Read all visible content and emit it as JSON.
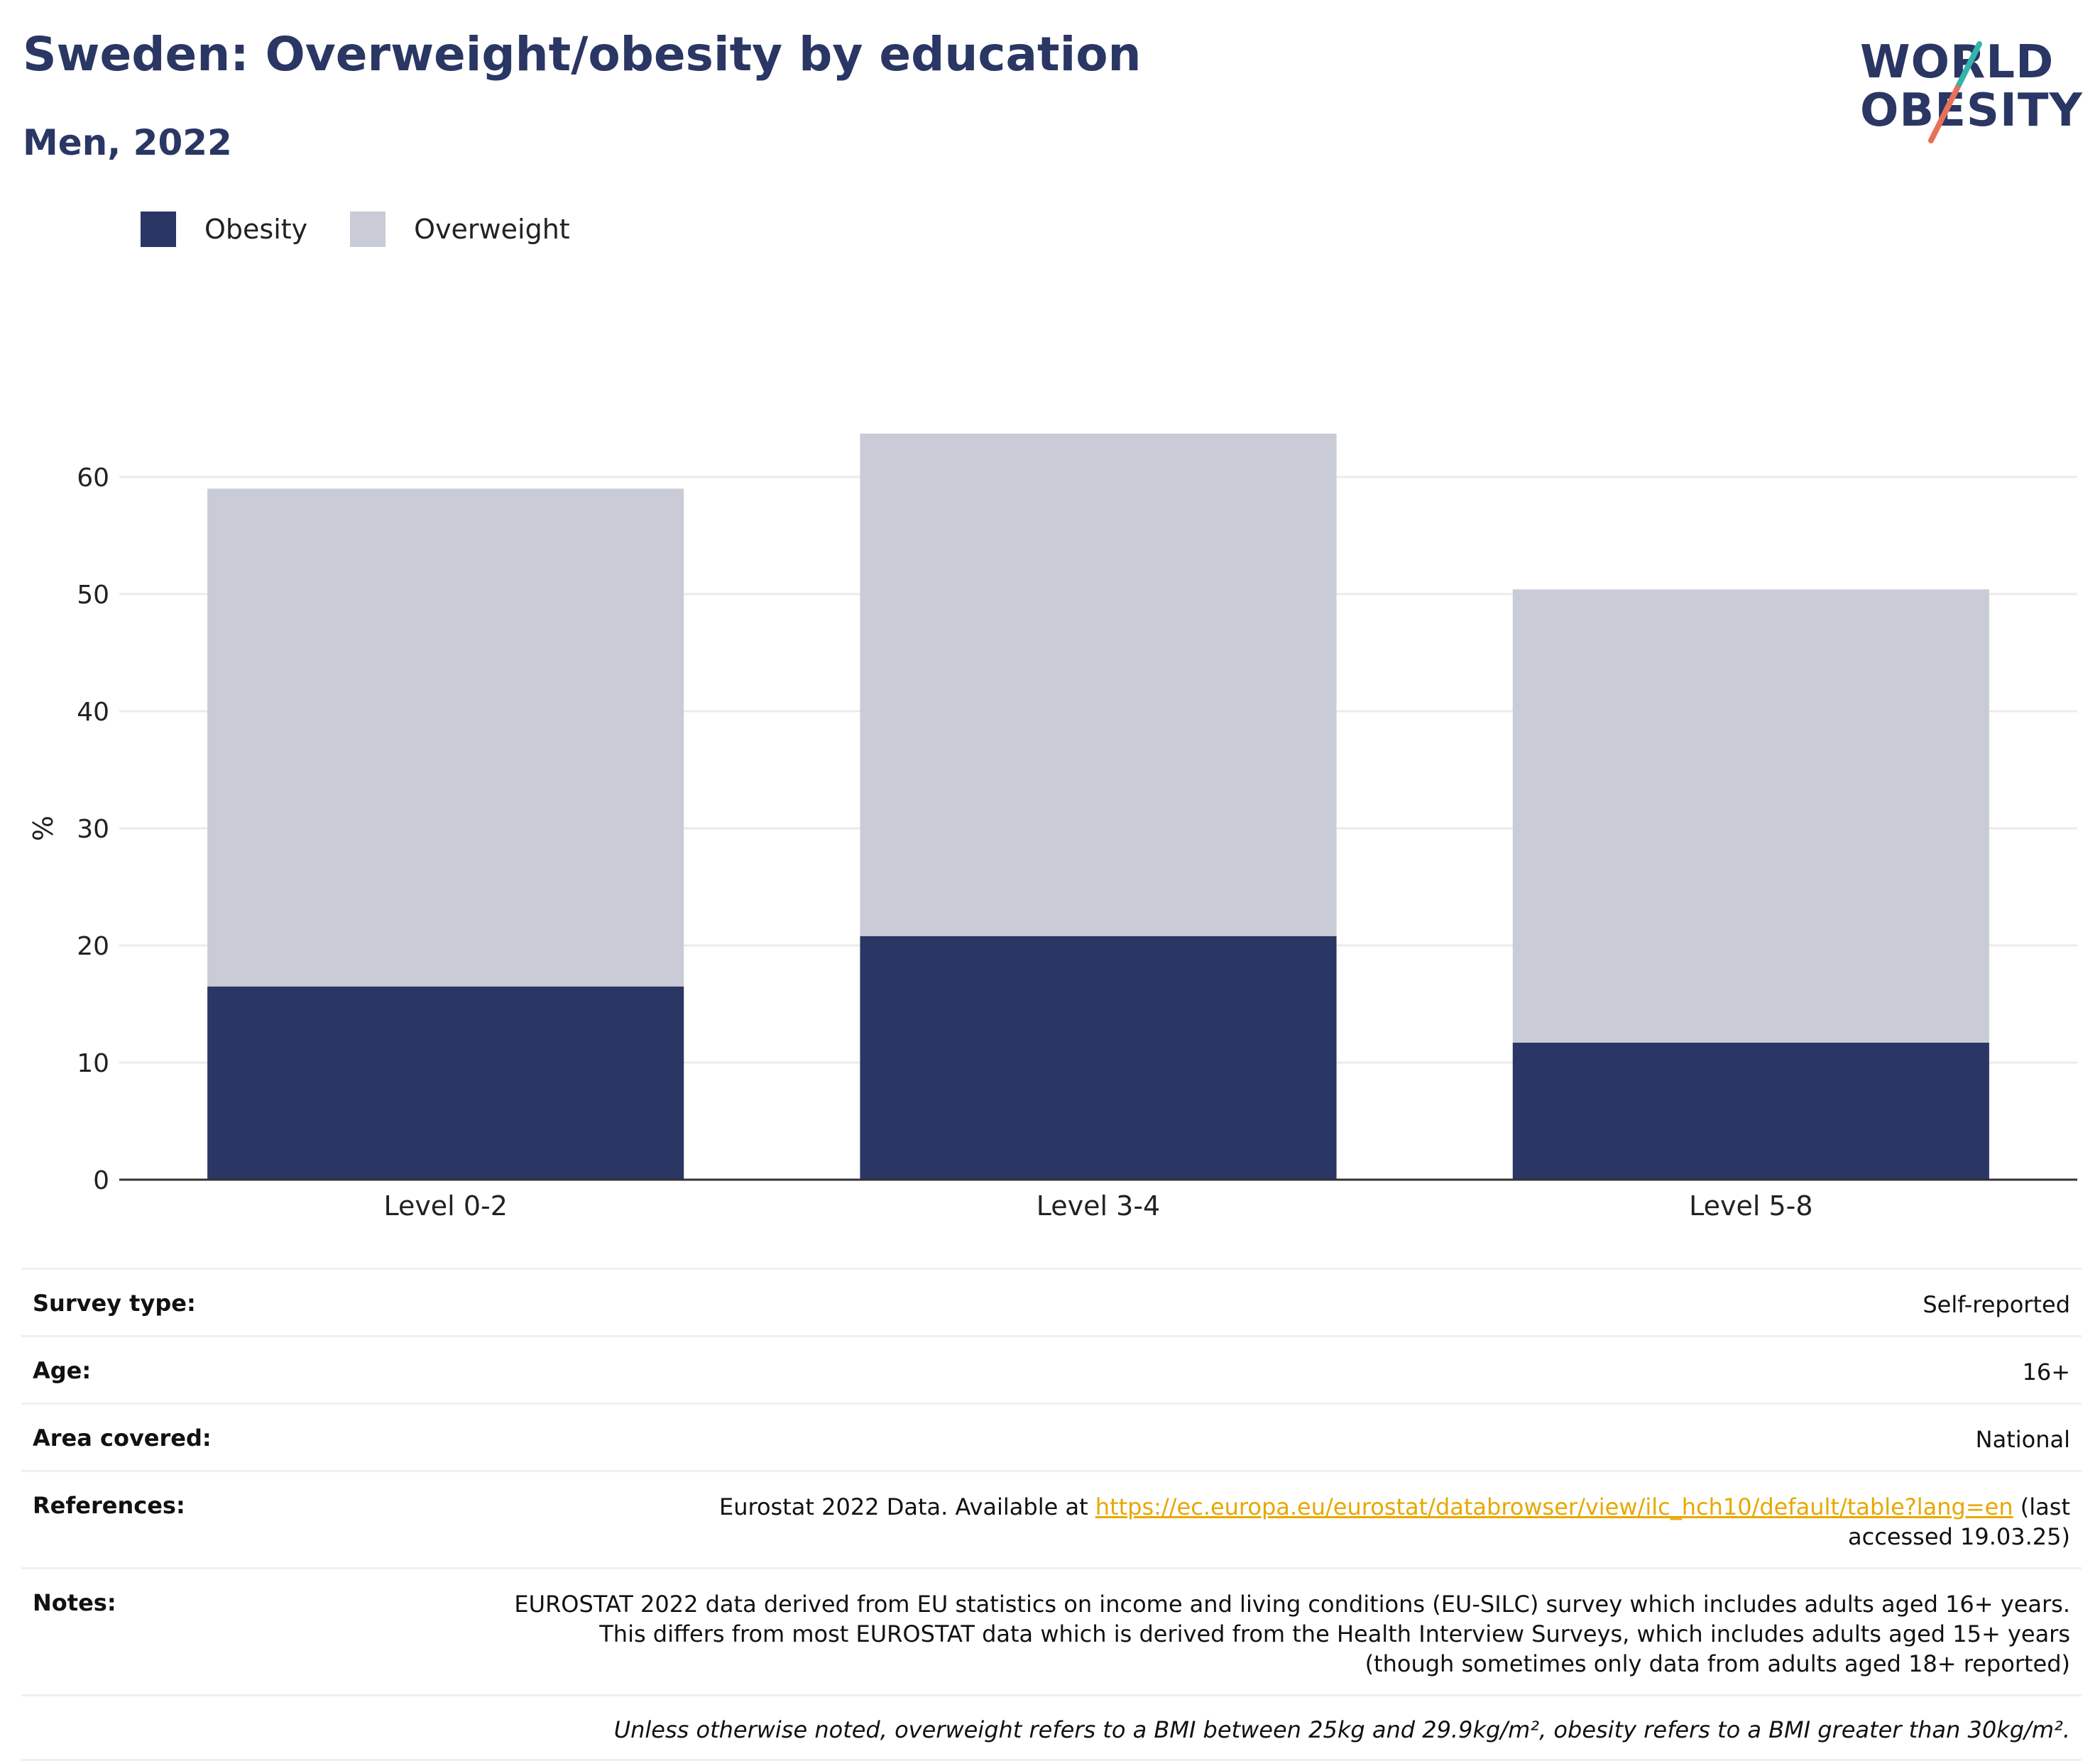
{
  "header": {
    "title": "Sweden: Overweight/obesity by education",
    "subtitle": "Men, 2022"
  },
  "logo": {
    "line1": "WORLD",
    "line2": "OBESITY"
  },
  "colors": {
    "obesity": "#2a3663",
    "overweight": "#c9cbd7",
    "title": "#2a3663",
    "link": "#e6a800"
  },
  "chart_data": {
    "type": "bar",
    "stacked": true,
    "categories": [
      "Level 0-2",
      "Level 3-4",
      "Level 5-8"
    ],
    "series": [
      {
        "name": "Obesity",
        "values": [
          16.5,
          20.8,
          11.7
        ]
      },
      {
        "name": "Overweight",
        "values": [
          42.5,
          42.9,
          38.7
        ]
      }
    ],
    "ylabel": "%",
    "xlabel": "",
    "ylim": [
      0,
      68
    ],
    "yticks": [
      0,
      10,
      20,
      30,
      40,
      50,
      60
    ],
    "grid": true,
    "legend": "top-left"
  },
  "info": {
    "survey_type": {
      "label": "Survey type:",
      "value": "Self-reported"
    },
    "age": {
      "label": "Age:",
      "value": "16+"
    },
    "area": {
      "label": "Area covered:",
      "value": "National"
    },
    "references": {
      "label": "References:",
      "prefix": "Eurostat 2022 Data. Available at ",
      "link": "https://ec.europa.eu/eurostat/databrowser/view/ilc_hch10/default/table?lang=en",
      "suffix": " (last accessed 19.03.25)"
    },
    "notes": {
      "label": "Notes:",
      "value": "EUROSTAT 2022 data derived from EU statistics on income and living conditions (EU-SILC) survey which includes adults aged 16+ years. This differs from most EUROSTAT data which is derived from the Health Interview Surveys, which includes adults aged 15+ years (though sometimes only data from adults aged 18+ reported)"
    },
    "footnote": "Unless otherwise noted, overweight refers to a BMI between 25kg and 29.9kg/m², obesity refers to a BMI greater than 30kg/m²."
  }
}
